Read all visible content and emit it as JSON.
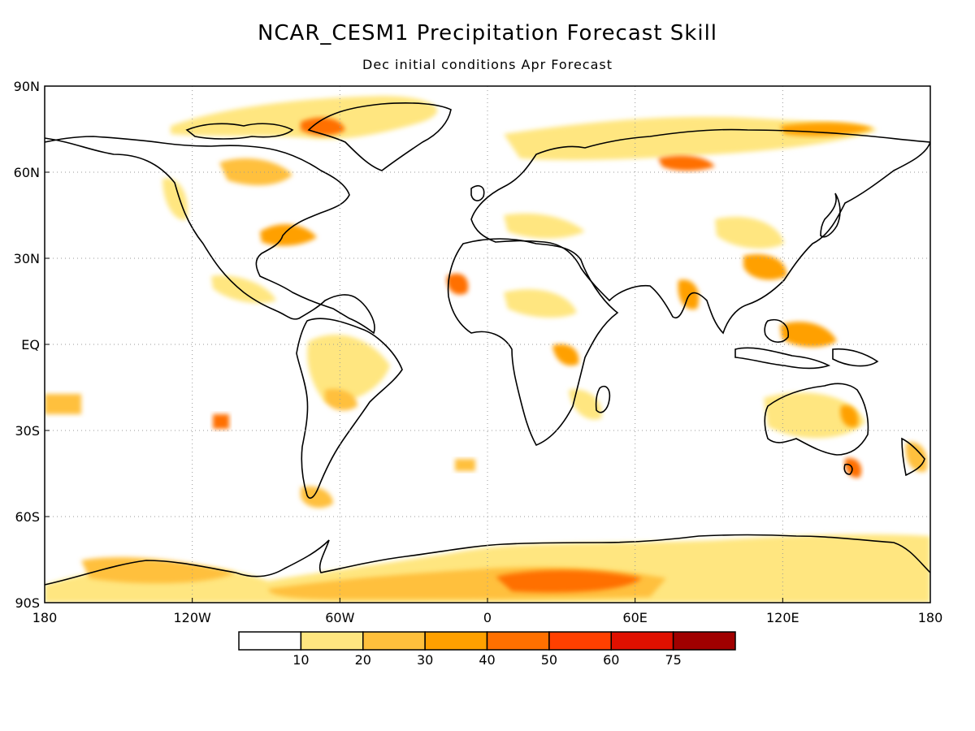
{
  "title": "NCAR_CESM1 Precipitation Forecast Skill",
  "subtitle": "Dec initial conditions  Apr Forecast",
  "lat_labels": [
    "90N",
    "60N",
    "30N",
    "EQ",
    "30S",
    "60S",
    "90S"
  ],
  "lon_labels": [
    "180",
    "120W",
    "60W",
    "0",
    "60E",
    "120E",
    "180"
  ],
  "colorbar": {
    "colors": [
      "#ffffff",
      "#ffe680",
      "#ffc03c",
      "#ffa000",
      "#ff7000",
      "#ff4000",
      "#e01000",
      "#a00000"
    ],
    "tick_labels": [
      "10",
      "20",
      "30",
      "40",
      "50",
      "60",
      "75"
    ]
  },
  "colors": {
    "grid": "#999999",
    "coast": "#000000"
  }
}
